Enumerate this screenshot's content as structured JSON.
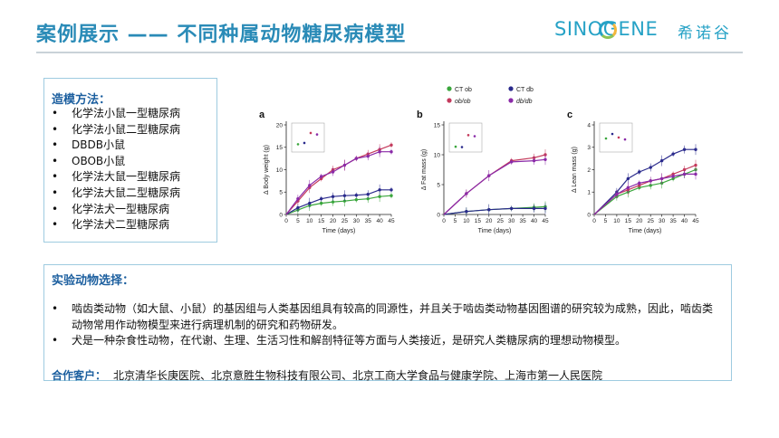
{
  "header": {
    "title": "案例展示 —— 不同种属动物糖尿病模型",
    "logo_text": "SINOGENE",
    "logo_cn": "希诺谷"
  },
  "method": {
    "heading": "造模方法：",
    "bullet": "•",
    "items": [
      "化学法小鼠一型糖尿病",
      "化学法小鼠二型糖尿病",
      "DBDB小鼠",
      "OBOB小鼠",
      "化学法大鼠一型糖尿病",
      "化学法大鼠二型糖尿病",
      "化学法犬一型糖尿病",
      "化学法犬二型糖尿病"
    ]
  },
  "animals": {
    "heading": "实验动物选择：",
    "bullet": "•",
    "points": [
      "啮齿类动物（如大鼠、小鼠）的基因组与人类基因组具有较高的同源性，并且关于啮齿类动物基因图谱的研究较为成熟，因此，啮齿类动物常用作动物模型来进行病理机制的研究和药物研发。",
      "犬是一种杂食性动物，在代谢、生理、生活习性和解剖特征等方面与人类接近，是研究人类糖尿病的理想动物模型。"
    ],
    "partners_label": "合作客户：",
    "partners": "北京清华长庚医院、北京意胜生物科技有限公司、北京工商大学食品与健康学院、上海市第一人民医院"
  },
  "chart_data": [
    {
      "type": "line",
      "panel": "a",
      "ylabel": "Δ Body weight (g)",
      "xlabel": "Time (days)",
      "x": [
        0,
        5,
        10,
        15,
        20,
        25,
        30,
        35,
        40,
        45
      ],
      "xlim": [
        0,
        45
      ],
      "ylim": [
        0,
        20
      ],
      "yticks": [
        0,
        5,
        10,
        15,
        20
      ],
      "series": [
        {
          "name": "CT ob",
          "color": "#3aa63c",
          "values": [
            0,
            1.0,
            2.0,
            2.5,
            2.8,
            3.0,
            3.3,
            3.5,
            4.0,
            4.2
          ]
        },
        {
          "name": "CT db",
          "color": "#2a2a8c",
          "values": [
            0,
            1.5,
            2.5,
            3.5,
            4.0,
            4.2,
            4.3,
            4.5,
            5.5,
            5.5
          ]
        },
        {
          "name": "ob/ob",
          "color": "#c43a5c",
          "values": [
            0,
            3.0,
            6.0,
            8.0,
            10.0,
            11.0,
            12.5,
            13.5,
            14.5,
            15.5
          ]
        },
        {
          "name": "db/db",
          "color": "#8a2aa8",
          "values": [
            0,
            3.5,
            6.5,
            8.5,
            9.5,
            11.0,
            12.5,
            13.0,
            14.0,
            14.0
          ]
        }
      ]
    },
    {
      "type": "line",
      "panel": "b",
      "ylabel": "Δ Fat mass (g)",
      "xlabel": "Time (days)",
      "x": [
        0,
        10,
        20,
        30,
        40,
        45
      ],
      "xlim": [
        0,
        45
      ],
      "ylim": [
        0,
        15
      ],
      "yticks": [
        0,
        5,
        10,
        15
      ],
      "series": [
        {
          "name": "CT ob",
          "color": "#3aa63c",
          "values": [
            0,
            0.5,
            0.8,
            1.0,
            1.2,
            1.3
          ]
        },
        {
          "name": "CT db",
          "color": "#2a2a8c",
          "values": [
            0,
            0.5,
            0.8,
            1.0,
            1.0,
            1.0
          ]
        },
        {
          "name": "ob/ob",
          "color": "#c43a5c",
          "values": [
            0,
            3.5,
            6.5,
            9.0,
            9.5,
            10.0
          ]
        },
        {
          "name": "db/db",
          "color": "#8a2aa8",
          "values": [
            0,
            3.5,
            6.5,
            8.8,
            9.0,
            9.2
          ]
        }
      ]
    },
    {
      "type": "line",
      "panel": "c",
      "ylabel": "Δ Lean mass (g)",
      "xlabel": "Time (days)",
      "x": [
        0,
        10,
        15,
        20,
        25,
        30,
        35,
        40,
        45
      ],
      "xlim": [
        0,
        45
      ],
      "ylim": [
        0,
        4
      ],
      "yticks": [
        0,
        1,
        2,
        3,
        4
      ],
      "series": [
        {
          "name": "CT ob",
          "color": "#3aa63c",
          "values": [
            0,
            0.8,
            1.0,
            1.2,
            1.3,
            1.4,
            1.6,
            1.8,
            2.0
          ]
        },
        {
          "name": "CT db",
          "color": "#2a2a8c",
          "values": [
            0,
            1.0,
            1.6,
            1.9,
            2.1,
            2.4,
            2.7,
            2.9,
            2.9
          ]
        },
        {
          "name": "ob/ob",
          "color": "#c43a5c",
          "values": [
            0,
            0.9,
            1.1,
            1.3,
            1.5,
            1.6,
            1.8,
            2.0,
            2.2
          ]
        },
        {
          "name": "db/db",
          "color": "#8a2aa8",
          "values": [
            0,
            0.9,
            1.2,
            1.4,
            1.5,
            1.6,
            1.7,
            1.8,
            1.8
          ]
        }
      ]
    }
  ],
  "legend": [
    {
      "label": "CT ob",
      "color": "#3aa63c"
    },
    {
      "label": "CT db",
      "color": "#2a2a8c"
    },
    {
      "label": "ob/ob",
      "color": "#c43a5c"
    },
    {
      "label": "db/db",
      "color": "#8a2aa8"
    }
  ]
}
